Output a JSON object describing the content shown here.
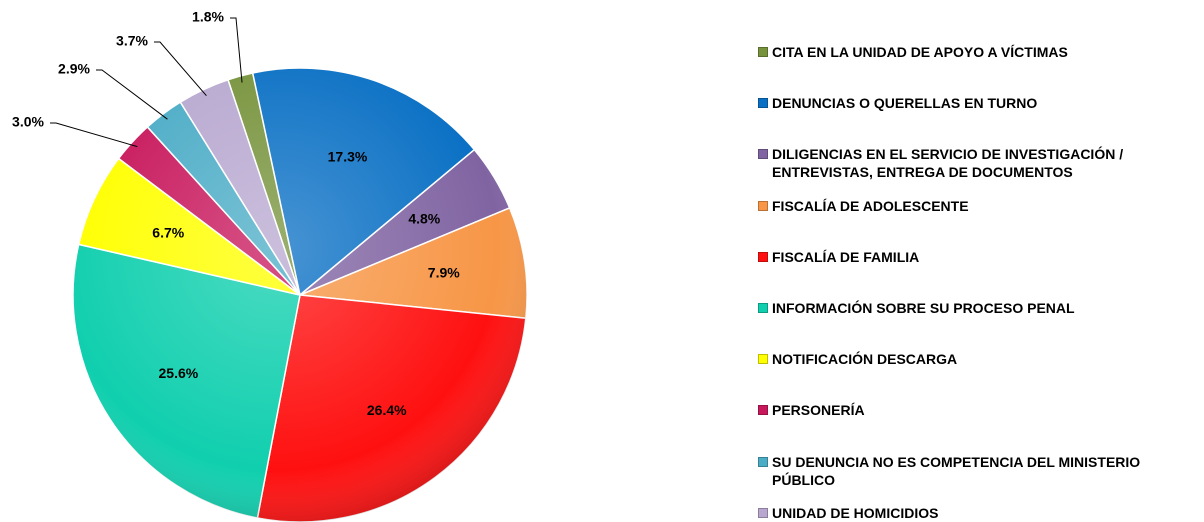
{
  "chart_data": {
    "type": "pie",
    "categories": [
      "CITA EN LA UNIDAD DE APOYO A VÍCTIMAS",
      "DENUNCIAS O QUERELLAS EN TURNO",
      "DILIGENCIAS EN EL SERVICIO DE INVESTIGACIÓN / ENTREVISTAS, ENTREGA DE DOCUMENTOS",
      "FISCALÍA DE ADOLESCENTE",
      "FISCALÍA DE FAMILIA",
      "INFORMACIÓN SOBRE SU PROCESO PENAL",
      "NOTIFICACIÓN DESCARGA",
      "PERSONERÍA",
      "SU DENUNCIA NO ES COMPETENCIA DEL MINISTERIO PÚBLICO",
      "UNIDAD DE HOMICIDIOS"
    ],
    "values": [
      1.8,
      17.3,
      4.8,
      7.9,
      26.4,
      25.6,
      6.7,
      3.0,
      2.9,
      3.7
    ],
    "value_labels": [
      "1.8%",
      "17.3%",
      "4.8%",
      "7.9%",
      "26.4%",
      "25.6%",
      "6.7%",
      "3.0%",
      "2.9%",
      "3.7%"
    ],
    "colors": [
      "#77933c",
      "#0a70c4",
      "#8064a2",
      "#f79646",
      "#ff1010",
      "#10cfae",
      "#ffff00",
      "#c8185c",
      "#4bacc6",
      "#b8a8d0"
    ],
    "legend": "right"
  }
}
